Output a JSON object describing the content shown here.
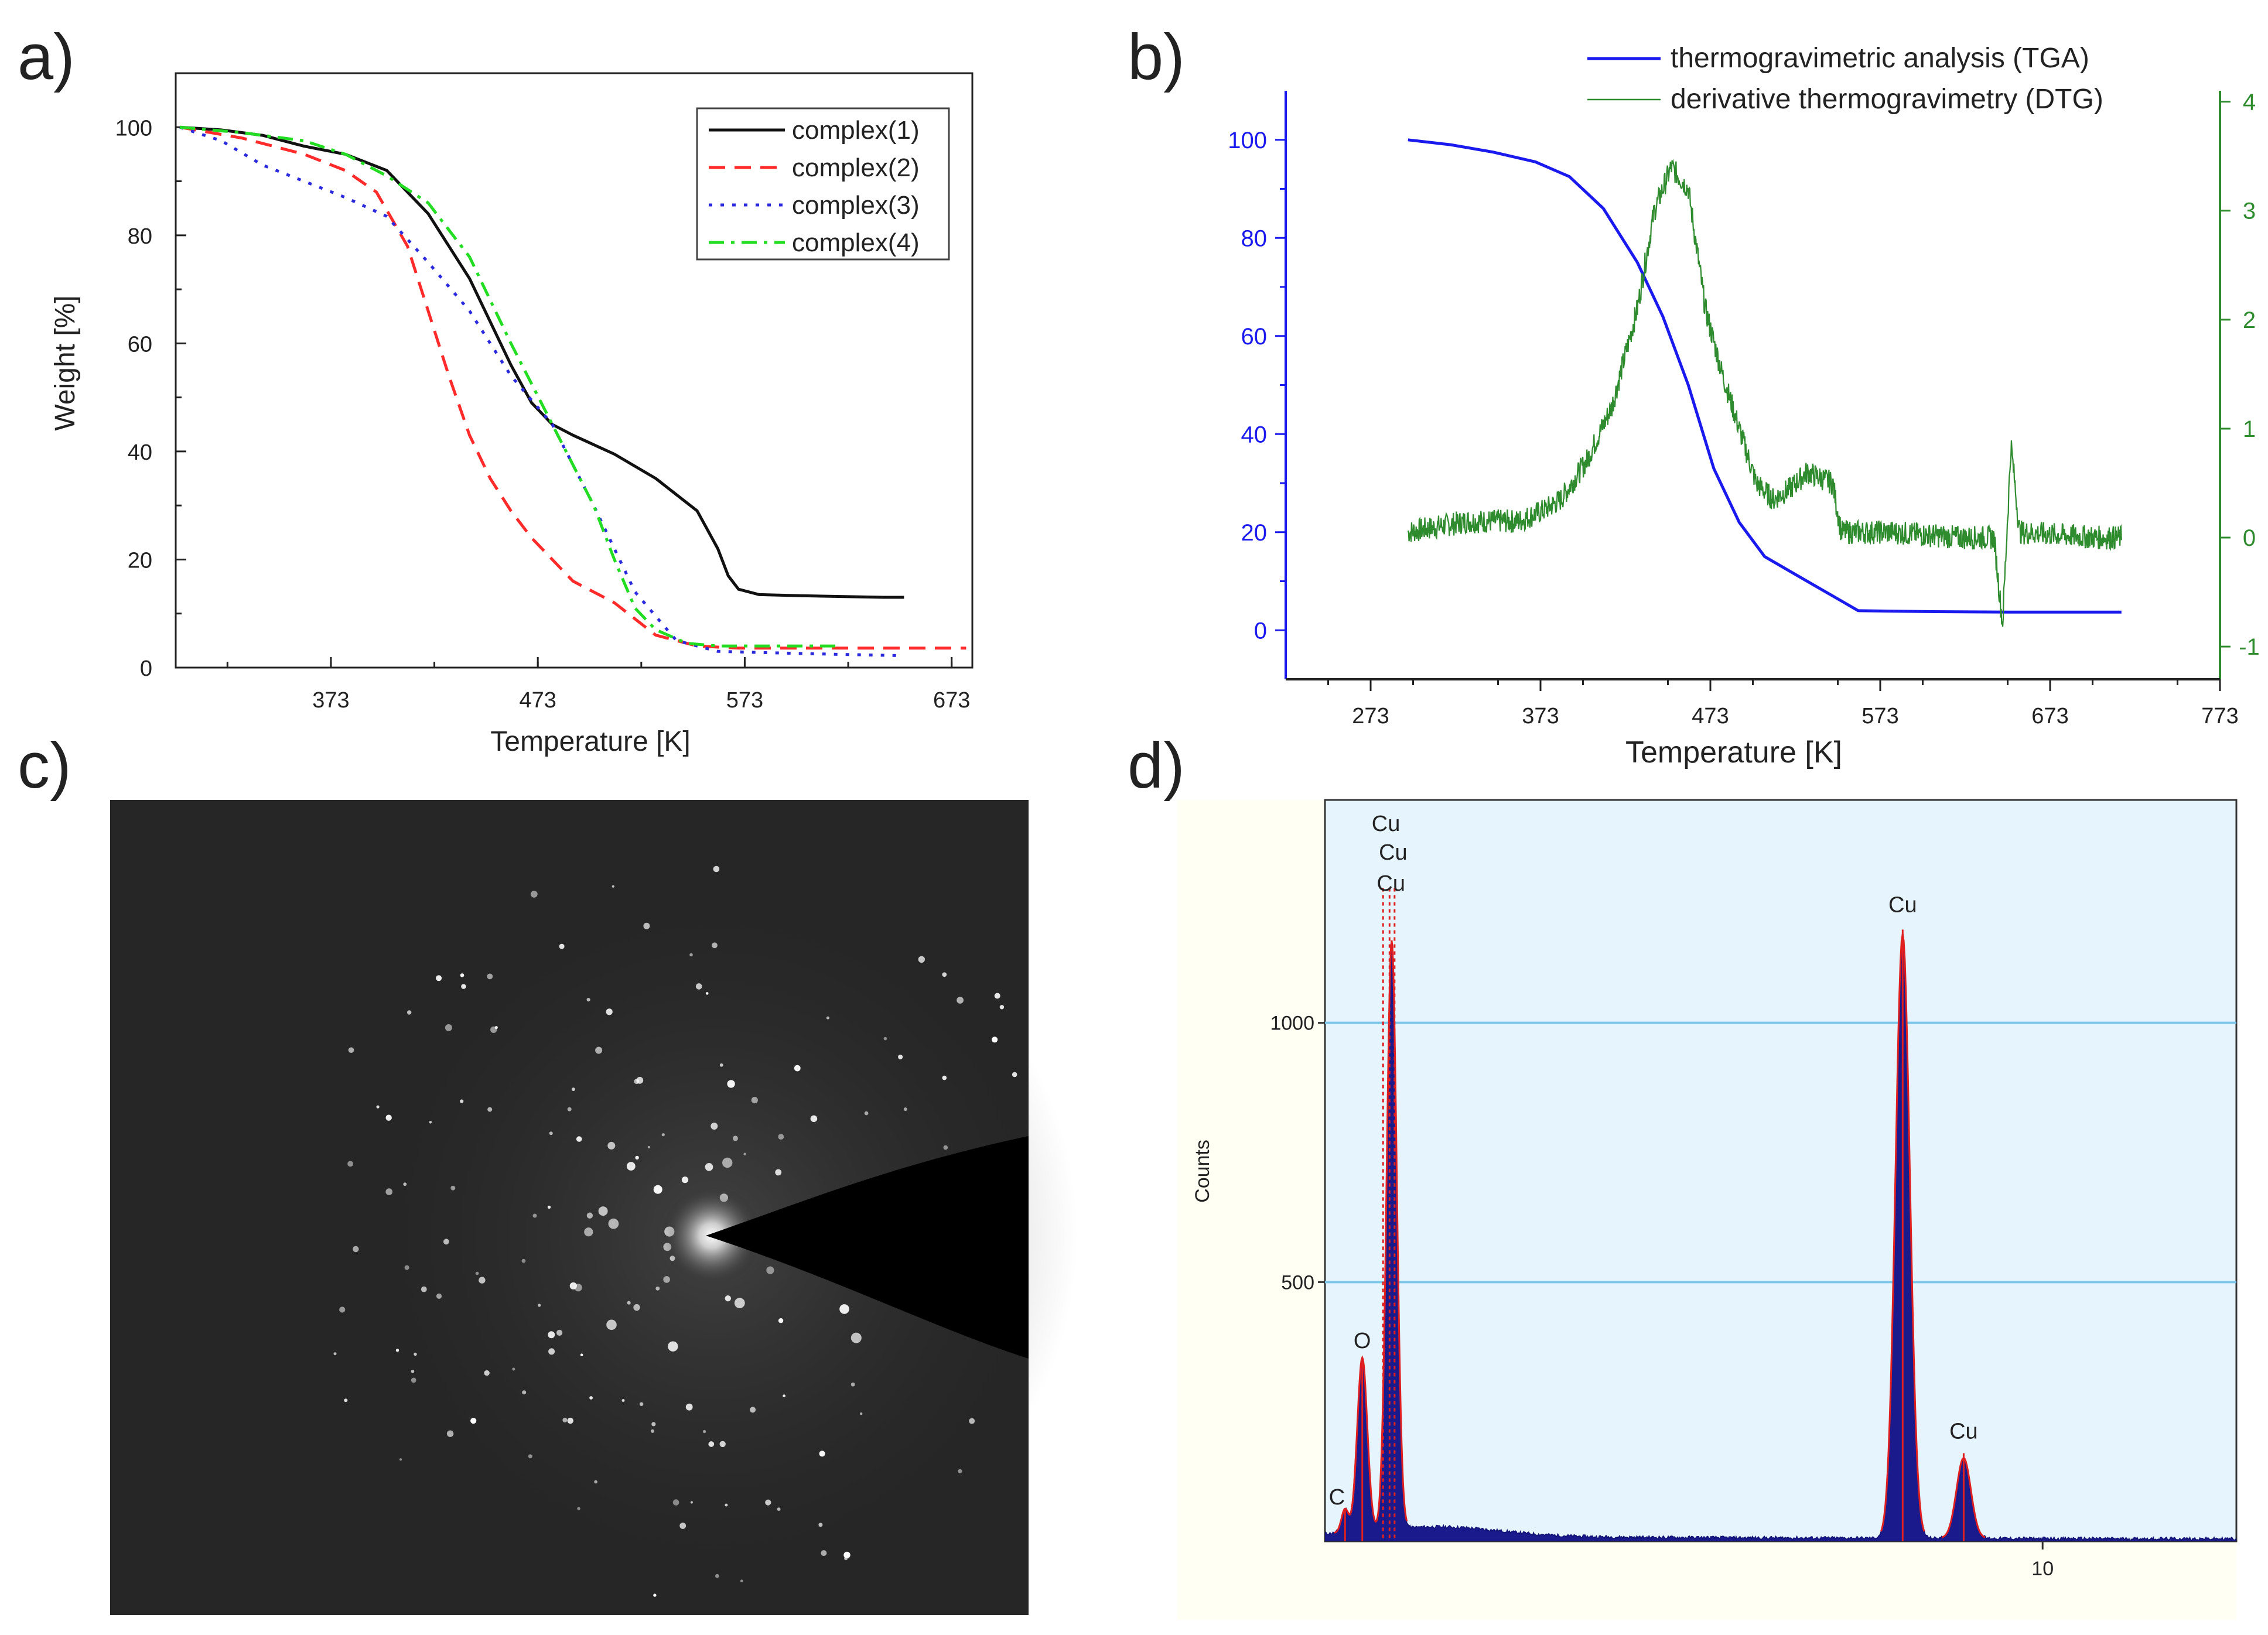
{
  "panel_labels": [
    "a)",
    "b)",
    "c)",
    "d)"
  ],
  "colors": {
    "complex1": "#111111",
    "complex2": "#ff2a2a",
    "complex3": "#2b2bdd",
    "complex4": "#22dd22",
    "tga": "#1a1aee",
    "dtg": "#2e8b2e",
    "eds_bg": "#e6f4fd",
    "eds_grid": "#7cc6ea",
    "eds_fill": "#1a1a8c",
    "eds_line": "#e02020"
  },
  "chart_data": [
    {
      "type": "line",
      "panel": "a)",
      "xlabel": "Temperature [K]",
      "ylabel": "Weight [%]",
      "xlim": [
        298,
        683
      ],
      "ylim": [
        0,
        110
      ],
      "xticks": [
        373,
        473,
        573,
        673
      ],
      "yticks": [
        0,
        20,
        40,
        60,
        80,
        100
      ],
      "legend_position": "top-right",
      "series": [
        {
          "name": "complex(1)",
          "style": "solid",
          "x": [
            300,
            320,
            340,
            360,
            380,
            400,
            420,
            440,
            460,
            470,
            480,
            490,
            510,
            530,
            550,
            560,
            565,
            570,
            575,
            580,
            600,
            640,
            650
          ],
          "y": [
            100,
            99.5,
            98.5,
            96.5,
            95,
            92,
            84,
            72,
            56,
            49,
            45,
            43,
            39.5,
            35,
            29,
            22,
            17,
            14.5,
            14,
            13.5,
            13.3,
            13,
            13
          ]
        },
        {
          "name": "complex(2)",
          "style": "dashed",
          "x": [
            300,
            330,
            360,
            380,
            395,
            410,
            420,
            430,
            440,
            450,
            460,
            470,
            480,
            490,
            510,
            530,
            550,
            570,
            620,
            680
          ],
          "y": [
            100,
            98,
            95,
            92,
            88,
            78,
            66,
            54,
            43,
            35,
            29,
            24,
            20,
            16,
            12,
            6,
            4,
            3.6,
            3.6,
            3.6
          ]
        },
        {
          "name": "complex(3)",
          "style": "dotted",
          "x": [
            300,
            320,
            340,
            360,
            380,
            400,
            420,
            440,
            460,
            480,
            500,
            520,
            540,
            560,
            600,
            650
          ],
          "y": [
            100,
            97.5,
            93,
            90,
            87,
            83.5,
            75,
            66,
            54,
            45,
            30,
            14,
            5,
            3,
            2.6,
            2.2
          ]
        },
        {
          "name": "complex(4)",
          "style": "dashdot",
          "x": [
            300,
            330,
            360,
            380,
            400,
            420,
            440,
            460,
            480,
            500,
            510,
            520,
            530,
            545,
            560,
            580,
            620
          ],
          "y": [
            100,
            99,
            97.5,
            95,
            91,
            86,
            76,
            60,
            45,
            30,
            20,
            11,
            7,
            4.5,
            4,
            4,
            4
          ]
        }
      ]
    },
    {
      "type": "line",
      "panel": "b)",
      "xlabel": "Temperature [K]",
      "xlim": [
        223,
        773
      ],
      "ylim_left": [
        -10,
        110
      ],
      "ylim_right": [
        -1.3,
        4.1
      ],
      "xticks": [
        273,
        373,
        473,
        573,
        673,
        773
      ],
      "yticks_left": [
        0,
        20,
        40,
        60,
        80,
        100
      ],
      "yticks_right": [
        -1,
        0,
        1,
        2,
        3,
        4
      ],
      "legend_position": "top",
      "series": [
        {
          "name": "thermogravimetric analysis (TGA)",
          "axis": "left",
          "x": [
            295,
            320,
            345,
            370,
            390,
            410,
            430,
            445,
            460,
            475,
            490,
            505,
            520,
            535,
            550,
            560,
            600,
            650,
            700,
            715
          ],
          "y": [
            100,
            99,
            97.5,
            95.5,
            92.5,
            86,
            75,
            64,
            50,
            33,
            22,
            15,
            12,
            9,
            6,
            4,
            3.8,
            3.7,
            3.7,
            3.7
          ]
        },
        {
          "name": "derivative thermogravimetry (DTG)",
          "axis": "left_right",
          "x": [
            295,
            330,
            360,
            375,
            385,
            400,
            415,
            430,
            440,
            450,
            460,
            470,
            480,
            490,
            500,
            510,
            520,
            530,
            545,
            550,
            580,
            620,
            640,
            645,
            650,
            655,
            700,
            715
          ],
          "y": [
            0.05,
            0.15,
            0.15,
            0.25,
            0.35,
            0.7,
            1.2,
            2.1,
            3.0,
            3.4,
            3.2,
            2.1,
            1.5,
            1.0,
            0.5,
            0.35,
            0.45,
            0.6,
            0.5,
            0.05,
            0.05,
            0.0,
            0.0,
            -0.8,
            0.85,
            0.05,
            0.0,
            0.0
          ]
        }
      ]
    },
    {
      "type": "image",
      "panel": "c)"
    },
    {
      "type": "bar",
      "panel": "d)",
      "ylabel": "Counts",
      "xlim": [
        0,
        12.7
      ],
      "ylim": [
        0,
        1430
      ],
      "yticks": [
        500,
        1000
      ],
      "xticks": [
        10
      ],
      "peaks": [
        {
          "label": "C",
          "energy": 0.28,
          "counts": 60
        },
        {
          "label": "O",
          "energy": 0.52,
          "counts": 350
        },
        {
          "label": "Cu",
          "energy": 0.93,
          "counts": 1150
        },
        {
          "label": "Cu",
          "energy": 8.05,
          "counts": 1180
        },
        {
          "label": "Cu",
          "energy": 8.9,
          "counts": 170
        }
      ],
      "marker_lines": [
        0.81,
        0.9,
        0.97
      ],
      "cu_stack_labels": [
        "Cu",
        "Cu",
        "Cu"
      ]
    }
  ]
}
